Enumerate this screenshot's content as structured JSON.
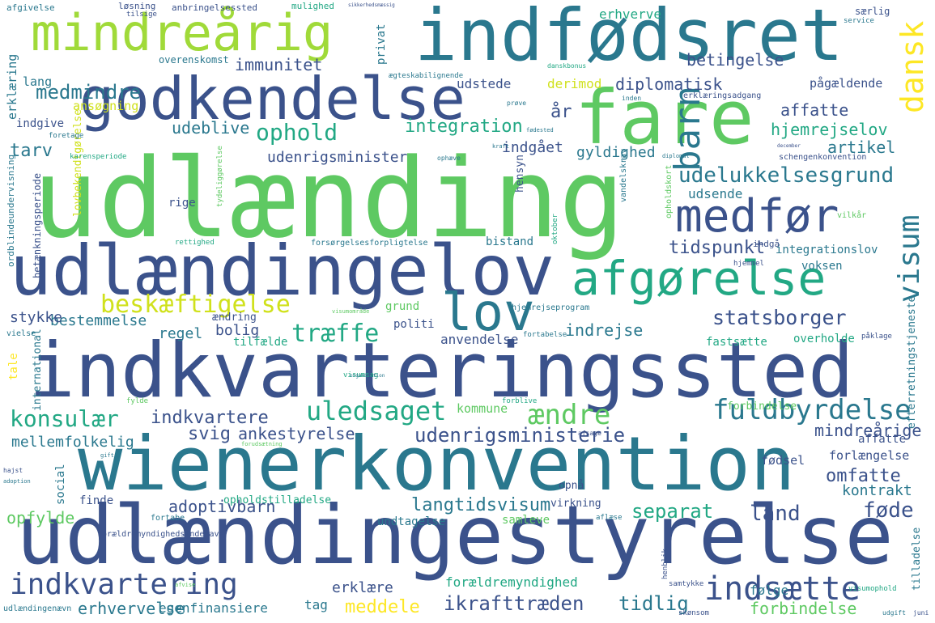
{
  "background_color": "#ffffff",
  "words": [
    {
      "text": "udlænding",
      "color": "#5ec962"
    },
    {
      "text": "indkvarteringssted",
      "color": "#3b528b"
    },
    {
      "text": "udlændingestyrelse",
      "color": "#3b528b"
    },
    {
      "text": "wienerkonvention",
      "color": "#2a788e"
    },
    {
      "text": "udlændingelov",
      "color": "#3b528b"
    },
    {
      "text": "indfødsret",
      "color": "#2a788e"
    },
    {
      "text": "fare",
      "color": "#5ec962"
    },
    {
      "text": "godkendelse",
      "color": "#3b528b"
    },
    {
      "text": "mindreårig",
      "color": "#a0da39"
    },
    {
      "text": "afgørelse",
      "color": "#22a884"
    },
    {
      "text": "medfør",
      "color": "#3b528b"
    },
    {
      "text": "lov",
      "color": "#2a788e"
    },
    {
      "text": "indkvartering",
      "color": "#3b528b"
    },
    {
      "text": "indsætte",
      "color": "#3b528b"
    },
    {
      "text": "fuldbyrdelse",
      "color": "#2a788e"
    },
    {
      "text": "barn",
      "color": "#2a788e"
    },
    {
      "text": "dansk",
      "color": "#fde725"
    },
    {
      "text": "visum",
      "color": "#2a788e"
    },
    {
      "text": "beskæftigelse",
      "color": "#d0e11c"
    },
    {
      "text": "udelukkelsesgrund",
      "color": "#2a788e"
    },
    {
      "text": "statsborger",
      "color": "#3b528b"
    },
    {
      "text": "træffe",
      "color": "#22a884"
    },
    {
      "text": "ændre",
      "color": "#5ec962"
    },
    {
      "text": "uledsaget",
      "color": "#22a884"
    },
    {
      "text": "konsulær",
      "color": "#22a884"
    },
    {
      "text": "ophold",
      "color": "#22a884"
    },
    {
      "text": "medmindre",
      "color": "#2a788e"
    },
    {
      "text": "udenrigsministerie",
      "color": "#3b528b"
    },
    {
      "text": "separat",
      "color": "#22a884"
    },
    {
      "text": "land",
      "color": "#3b528b"
    },
    {
      "text": "føde",
      "color": "#3b528b"
    },
    {
      "text": "langtidsvisum",
      "color": "#2a788e"
    },
    {
      "text": "ikrafttræden",
      "color": "#3b528b"
    },
    {
      "text": "tidlig",
      "color": "#2a788e"
    },
    {
      "text": "meddele",
      "color": "#fde725"
    },
    {
      "text": "erhvervelse",
      "color": "#2a788e"
    },
    {
      "text": "forbindelse",
      "color": "#5ec962"
    },
    {
      "text": "integration",
      "color": "#22a884"
    },
    {
      "text": "diplomatisk",
      "color": "#3b528b"
    },
    {
      "text": "affatte",
      "color": "#3b528b"
    },
    {
      "text": "hjemrejselov",
      "color": "#22a884"
    },
    {
      "text": "artikel",
      "color": "#2a788e"
    },
    {
      "text": "betingelse",
      "color": "#3b528b"
    },
    {
      "text": "udeblive",
      "color": "#2a788e"
    },
    {
      "text": "tarv",
      "color": "#2a788e"
    },
    {
      "text": "immunitet",
      "color": "#3b528b"
    },
    {
      "text": "indgået",
      "color": "#3b528b"
    },
    {
      "text": "udenrigsminister",
      "color": "#3b528b"
    },
    {
      "text": "gyldighed",
      "color": "#2a788e"
    },
    {
      "text": "tidspunkt",
      "color": "#3b528b"
    },
    {
      "text": "indrejse",
      "color": "#2a788e"
    },
    {
      "text": "bolig",
      "color": "#3b528b"
    },
    {
      "text": "regel",
      "color": "#2a788e"
    },
    {
      "text": "bestemmelse",
      "color": "#2a788e"
    },
    {
      "text": "stykke",
      "color": "#3b528b"
    },
    {
      "text": "svig",
      "color": "#3b528b"
    },
    {
      "text": "indkvartere",
      "color": "#3b528b"
    },
    {
      "text": "ankestyrelse",
      "color": "#3b528b"
    },
    {
      "text": "mindreårige",
      "color": "#3b528b"
    },
    {
      "text": "omfatte",
      "color": "#3b528b"
    },
    {
      "text": "adoptivbarn",
      "color": "#3b528b"
    },
    {
      "text": "kontrakt",
      "color": "#2a788e"
    },
    {
      "text": "opfylde",
      "color": "#5ec962"
    },
    {
      "text": "mellemfolkelig",
      "color": "#2a788e"
    },
    {
      "text": "erklære",
      "color": "#3b528b"
    },
    {
      "text": "forældremyndighed",
      "color": "#22a884"
    },
    {
      "text": "følge",
      "color": "#2a788e"
    },
    {
      "text": "egenfinansiere",
      "color": "#2a788e"
    },
    {
      "text": "tag",
      "color": "#2a788e"
    },
    {
      "text": "udstede",
      "color": "#3b528b"
    },
    {
      "text": "erhverve",
      "color": "#22a884"
    },
    {
      "text": "derimod",
      "color": "#d0e11c"
    },
    {
      "text": "pågældende",
      "color": "#3b528b"
    },
    {
      "text": "udsende",
      "color": "#2a788e"
    },
    {
      "text": "integrationslov",
      "color": "#2a788e"
    },
    {
      "text": "voksen",
      "color": "#2a788e"
    },
    {
      "text": "anvendelse",
      "color": "#3b528b"
    },
    {
      "text": "overholde",
      "color": "#22a884"
    },
    {
      "text": "fastsætte",
      "color": "#22a884"
    },
    {
      "text": "fødsel",
      "color": "#3b528b"
    },
    {
      "text": "forlængelse",
      "color": "#3b528b"
    },
    {
      "text": "affatte",
      "color": "#3b528b"
    },
    {
      "text": "forbindelse",
      "color": "#5ec962"
    },
    {
      "text": "kommune",
      "color": "#5ec962"
    },
    {
      "text": "bistand",
      "color": "#2a788e"
    },
    {
      "text": "privat",
      "color": "#2a788e"
    },
    {
      "text": "ansøgning",
      "color": "#d0e11c"
    },
    {
      "text": "lang",
      "color": "#2a788e"
    },
    {
      "text": "indgive",
      "color": "#3b528b"
    },
    {
      "text": "erklæring",
      "color": "#2a788e"
    },
    {
      "text": "rige",
      "color": "#3b528b"
    },
    {
      "text": "politi",
      "color": "#3b528b"
    },
    {
      "text": "grund",
      "color": "#5ec962"
    },
    {
      "text": "ændring",
      "color": "#3b528b"
    },
    {
      "text": "tilfælde",
      "color": "#22a884"
    },
    {
      "text": "finde",
      "color": "#3b528b"
    },
    {
      "text": "social",
      "color": "#2a788e"
    },
    {
      "text": "opnå",
      "color": "#3b528b"
    },
    {
      "text": "undtagelse",
      "color": "#2a788e"
    },
    {
      "text": "samleve",
      "color": "#5ec962"
    },
    {
      "text": "virkning",
      "color": "#3b528b"
    },
    {
      "text": "hensyn",
      "color": "#3b528b"
    },
    {
      "text": "opholdstilladelse",
      "color": "#22a884"
    },
    {
      "text": "international",
      "color": "#2a788e"
    },
    {
      "text": "tale",
      "color": "#fde725"
    },
    {
      "text": "vielse",
      "color": "#2a788e"
    },
    {
      "text": "år",
      "color": "#3b528b"
    },
    {
      "text": "tilladelse",
      "color": "#2a788e"
    },
    {
      "text": "efterretningstjeneste",
      "color": "#2a788e"
    },
    {
      "text": "betænkningsperiode",
      "color": "#3b528b"
    },
    {
      "text": "ordblindeundervisning",
      "color": "#2a788e"
    },
    {
      "text": "lovbekendtgørelse",
      "color": "#d0e11c"
    },
    {
      "text": "opholdskort",
      "color": "#5ec962"
    },
    {
      "text": "vandelskrav",
      "color": "#2a788e"
    },
    {
      "text": "ægteskabilignende",
      "color": "#2a788e"
    },
    {
      "text": "overenskomst",
      "color": "#2a788e"
    },
    {
      "text": "mulighed",
      "color": "#22a884"
    },
    {
      "text": "afgivelse",
      "color": "#2a788e"
    },
    {
      "text": "løsning",
      "color": "#3b528b"
    },
    {
      "text": "tilsige",
      "color": "#3b528b"
    },
    {
      "text": "anbringelsessted",
      "color": "#3b528b"
    },
    {
      "text": "særlig",
      "color": "#3b528b"
    },
    {
      "text": "service",
      "color": "#2a788e"
    },
    {
      "text": "sikkerhedsmæssig",
      "color": "#3b528b"
    },
    {
      "text": "danskbonus",
      "color": "#22a884"
    },
    {
      "text": "inden",
      "color": "#2a788e"
    },
    {
      "text": "erklæringsadgang",
      "color": "#3b528b"
    },
    {
      "text": "prøve",
      "color": "#2a788e"
    },
    {
      "text": "fødested",
      "color": "#2a788e"
    },
    {
      "text": "kraft",
      "color": "#2a788e"
    },
    {
      "text": "diplomat",
      "color": "#2a788e"
    },
    {
      "text": "december",
      "color": "#3b528b"
    },
    {
      "text": "karensperiode",
      "color": "#22a884"
    },
    {
      "text": "foretage",
      "color": "#2a788e"
    },
    {
      "text": "rettighed",
      "color": "#22a884"
    },
    {
      "text": "forsørgelsesforpligtelse",
      "color": "#2a788e"
    },
    {
      "text": "hjemrejseprogram",
      "color": "#2a788e"
    },
    {
      "text": "vilkår",
      "color": "#5ec962"
    },
    {
      "text": "schengenkonvention",
      "color": "#3b528b"
    },
    {
      "text": "hjemmel",
      "color": "#3b528b"
    },
    {
      "text": "indgå",
      "color": "#3b528b"
    },
    {
      "text": "fortabelse",
      "color": "#2a788e"
    },
    {
      "text": "påklage",
      "color": "#3b528b"
    },
    {
      "text": "visumsag",
      "color": "#22a884"
    },
    {
      "text": "visumområde",
      "color": "#5ec962"
    },
    {
      "text": "fylde",
      "color": "#5ec962"
    },
    {
      "text": "forblive",
      "color": "#22a884"
    },
    {
      "text": "afsage",
      "color": "#3b528b"
    },
    {
      "text": "gift",
      "color": "#2a788e"
    },
    {
      "text": "fortabe",
      "color": "#2a788e"
    },
    {
      "text": "forældremyndighedsindehave",
      "color": "#3b528b"
    },
    {
      "text": "aflæse",
      "color": "#2a788e"
    },
    {
      "text": "samtykke",
      "color": "#3b528b"
    },
    {
      "text": "henblik",
      "color": "#3b528b"
    },
    {
      "text": "udlændingenævn",
      "color": "#2a788e"
    },
    {
      "text": "skønsom",
      "color": "#3b528b"
    },
    {
      "text": "visumophold",
      "color": "#22a884"
    },
    {
      "text": "udgift",
      "color": "#2a788e"
    },
    {
      "text": "juni",
      "color": "#3b528b"
    },
    {
      "text": "oktober",
      "color": "#22a884"
    },
    {
      "text": "ophæve",
      "color": "#2a788e"
    },
    {
      "text": "organisation",
      "color": "#2a788e"
    },
    {
      "text": "forudsætning",
      "color": "#5ec962"
    },
    {
      "text": "hajst",
      "color": "#3b528b"
    },
    {
      "text": "adoption",
      "color": "#2a788e"
    },
    {
      "text": "tydeliggørelse",
      "color": "#5ec962"
    },
    {
      "text": "afvise",
      "color": "#5ec962"
    }
  ]
}
